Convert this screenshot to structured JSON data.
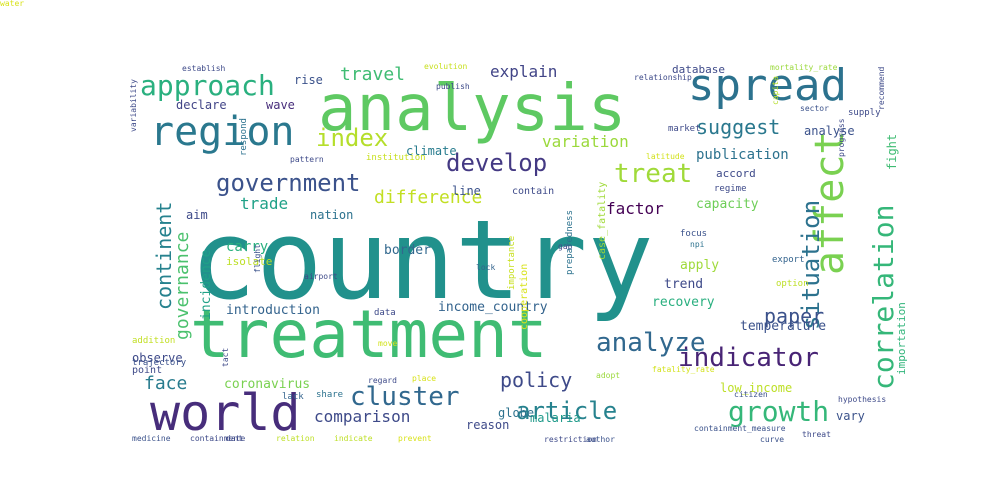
{
  "words": [
    {
      "text": "country",
      "color": "#21918c",
      "vertical": false
    },
    {
      "text": "treatment",
      "color": "#3fbc73",
      "vertical": false
    },
    {
      "text": "analysis",
      "color": "#5ec962",
      "vertical": false
    },
    {
      "text": "world",
      "color": "#472d7b",
      "vertical": false
    },
    {
      "text": "spread",
      "color": "#2c728e",
      "vertical": false
    },
    {
      "text": "region",
      "color": "#2a788e",
      "vertical": false
    },
    {
      "text": "affect",
      "color": "#7ad151",
      "vertical": true
    },
    {
      "text": "approach",
      "color": "#2ab07f",
      "vertical": false
    },
    {
      "text": "correlation",
      "color": "#35b779",
      "vertical": true
    },
    {
      "text": "analyze",
      "color": "#31688e",
      "vertical": false
    },
    {
      "text": "government",
      "color": "#3b528b",
      "vertical": false
    },
    {
      "text": "develop",
      "color": "#443983",
      "vertical": false
    },
    {
      "text": "indicator",
      "color": "#482475",
      "vertical": false
    },
    {
      "text": "cluster",
      "color": "#31688e",
      "vertical": false
    },
    {
      "text": "article",
      "color": "#26828e",
      "vertical": false
    },
    {
      "text": "growth",
      "color": "#35b779",
      "vertical": false
    },
    {
      "text": "treat",
      "color": "#a0da39",
      "vertical": false
    },
    {
      "text": "index",
      "color": "#b5de2b",
      "vertical": false
    },
    {
      "text": "situation",
      "color": "#2c728e",
      "vertical": true
    },
    {
      "text": "suggest",
      "color": "#2a788e",
      "vertical": false
    },
    {
      "text": "policy",
      "color": "#3e4a89",
      "vertical": false
    },
    {
      "text": "paper",
      "color": "#3b528b",
      "vertical": false
    },
    {
      "text": "continent",
      "color": "#26828e",
      "vertical": true
    },
    {
      "text": "governance",
      "color": "#4ac16d",
      "vertical": true
    },
    {
      "text": "travel",
      "color": "#3fbc73",
      "vertical": false
    },
    {
      "text": "explain",
      "color": "#414487",
      "vertical": false
    },
    {
      "text": "difference",
      "color": "#c2df23",
      "vertical": false
    },
    {
      "text": "factor",
      "color": "#440154",
      "vertical": false
    },
    {
      "text": "variation",
      "color": "#9bd93c",
      "vertical": false
    },
    {
      "text": "trade",
      "color": "#1fa187",
      "vertical": false
    },
    {
      "text": "face",
      "color": "#287c8e",
      "vertical": false
    },
    {
      "text": "comparison",
      "color": "#3e4a89",
      "vertical": false
    },
    {
      "text": "publication",
      "color": "#2c728e",
      "vertical": false
    },
    {
      "text": "analyse",
      "color": "#3b528b",
      "vertical": false
    },
    {
      "text": "accord",
      "color": "#3e4a89",
      "vertical": false
    },
    {
      "text": "capacity",
      "color": "#6ece58",
      "vertical": false
    },
    {
      "text": "carry",
      "color": "#2ab07f",
      "vertical": false
    },
    {
      "text": "isolate",
      "color": "#bddf26",
      "vertical": false
    },
    {
      "text": "incidence",
      "color": "#1fa187",
      "vertical": true
    },
    {
      "text": "border",
      "color": "#31688e",
      "vertical": false
    },
    {
      "text": "introduction",
      "color": "#33638d",
      "vertical": false
    },
    {
      "text": "income_country",
      "color": "#33638d",
      "vertical": false
    },
    {
      "text": "recovery",
      "color": "#29af7f",
      "vertical": false
    },
    {
      "text": "apply",
      "color": "#9fda3a",
      "vertical": false
    },
    {
      "text": "trend",
      "color": "#3e4a89",
      "vertical": false
    },
    {
      "text": "temperature",
      "color": "#3b528b",
      "vertical": false
    },
    {
      "text": "importation",
      "color": "#31b57b",
      "vertical": true
    },
    {
      "text": "coronavirus",
      "color": "#7ad151",
      "vertical": false
    },
    {
      "text": "low_income",
      "color": "#bddf26",
      "vertical": false
    },
    {
      "text": "malaria",
      "color": "#1f9a8a",
      "vertical": false
    },
    {
      "text": "globe",
      "color": "#2c728e",
      "vertical": false
    },
    {
      "text": "reason",
      "color": "#3e4a89",
      "vertical": false
    },
    {
      "text": "vary",
      "color": "#3b528b",
      "vertical": false
    },
    {
      "text": "observe",
      "color": "#3e4a89",
      "vertical": false
    },
    {
      "text": "declare",
      "color": "#414487",
      "vertical": false
    },
    {
      "text": "wave",
      "color": "#472d7b",
      "vertical": false
    },
    {
      "text": "rise",
      "color": "#3b528b",
      "vertical": false
    },
    {
      "text": "aim",
      "color": "#3e4a89",
      "vertical": false
    },
    {
      "text": "nation",
      "color": "#2c728e",
      "vertical": false
    },
    {
      "text": "climate",
      "color": "#287c8e",
      "vertical": false
    },
    {
      "text": "line",
      "color": "#3b528b",
      "vertical": false
    },
    {
      "text": "contain",
      "color": "#3e4a89",
      "vertical": false
    },
    {
      "text": "fight",
      "color": "#3fbc73",
      "vertical": true
    },
    {
      "text": "case_fatality",
      "color": "#a0da39",
      "vertical": true
    },
    {
      "text": "respond",
      "color": "#2c728e",
      "vertical": true
    },
    {
      "text": "pattern",
      "color": "#3e4a89",
      "vertical": false
    },
    {
      "text": "institution",
      "color": "#c8e020",
      "vertical": false
    },
    {
      "text": "latitude",
      "color": "#d2e21b",
      "vertical": false
    },
    {
      "text": "regime",
      "color": "#3e4a89",
      "vertical": false
    },
    {
      "text": "focus",
      "color": "#3b528b",
      "vertical": false
    },
    {
      "text": "npi",
      "color": "#2c728e",
      "vertical": false
    },
    {
      "text": "option",
      "color": "#bddf26",
      "vertical": false
    },
    {
      "text": "export",
      "color": "#33638d",
      "vertical": false
    },
    {
      "text": "gap",
      "color": "#3e4a89",
      "vertical": false
    },
    {
      "text": "lock",
      "color": "#33638d",
      "vertical": false
    },
    {
      "text": "cooperation",
      "color": "#d8e219",
      "vertical": true
    },
    {
      "text": "importance",
      "color": "#c8e020",
      "vertical": true
    },
    {
      "text": "preparedness",
      "color": "#2c728e",
      "vertical": true
    },
    {
      "text": "flight",
      "color": "#3b528b",
      "vertical": true
    },
    {
      "text": "airport",
      "color": "#3e4a89",
      "vertical": false
    },
    {
      "text": "data",
      "color": "#3e4a89",
      "vertical": false
    },
    {
      "text": "addition",
      "color": "#c2df23",
      "vertical": false
    },
    {
      "text": "point",
      "color": "#3e4a89",
      "vertical": false
    },
    {
      "text": "trajectory",
      "color": "#3b528b",
      "vertical": false
    },
    {
      "text": "lack",
      "color": "#33638d",
      "vertical": false
    },
    {
      "text": "share",
      "color": "#2c728e",
      "vertical": false
    },
    {
      "text": "regard",
      "color": "#3e4a89",
      "vertical": false
    },
    {
      "text": "place",
      "color": "#d8e219",
      "vertical": false
    },
    {
      "text": "fatality_rate",
      "color": "#d2e21b",
      "vertical": false
    },
    {
      "text": "adopt",
      "color": "#9bd93c",
      "vertical": false
    },
    {
      "text": "citizen",
      "color": "#3b528b",
      "vertical": false
    },
    {
      "text": "hypothesis",
      "color": "#3e4a89",
      "vertical": false
    },
    {
      "text": "medicine",
      "color": "#3b528b",
      "vertical": false
    },
    {
      "text": "containment",
      "color": "#3e4a89",
      "vertical": false
    },
    {
      "text": "date",
      "color": "#3e4a89",
      "vertical": false
    },
    {
      "text": "relation",
      "color": "#bddf26",
      "vertical": false
    },
    {
      "text": "indicate",
      "color": "#bddf26",
      "vertical": false
    },
    {
      "text": "prevent",
      "color": "#d8e219",
      "vertical": false
    },
    {
      "text": "restriction",
      "color": "#3e4a89",
      "vertical": false
    },
    {
      "text": "author",
      "color": "#3b528b",
      "vertical": false
    },
    {
      "text": "containment_measure",
      "color": "#3b528b",
      "vertical": false
    },
    {
      "text": "curve",
      "color": "#3b528b",
      "vertical": false
    },
    {
      "text": "threat",
      "color": "#3e4a89",
      "vertical": false
    },
    {
      "text": "establish",
      "color": "#3e4a89",
      "vertical": false
    },
    {
      "text": "evolution",
      "color": "#c8e020",
      "vertical": false
    },
    {
      "text": "publish",
      "color": "#3e4a89",
      "vertical": false
    },
    {
      "text": "relationship",
      "color": "#3e4a89",
      "vertical": false
    },
    {
      "text": "database",
      "color": "#3e4a89",
      "vertical": false
    },
    {
      "text": "mortality_rate",
      "color": "#9bd93c",
      "vertical": false
    },
    {
      "text": "market",
      "color": "#3e4a89",
      "vertical": false
    },
    {
      "text": "capita",
      "color": "#b5de2b",
      "vertical": true
    },
    {
      "text": "sector",
      "color": "#3b528b",
      "vertical": false
    },
    {
      "text": "supply",
      "color": "#3e4a89",
      "vertical": false
    },
    {
      "text": "recommend",
      "color": "#3e4a89",
      "vertical": true
    },
    {
      "text": "variability",
      "color": "#3e4a89",
      "vertical": true
    },
    {
      "text": "progress",
      "color": "#3e4a89",
      "vertical": true
    },
    {
      "text": "move",
      "color": "#d2e21b",
      "vertical": false
    },
    {
      "text": "tact",
      "color": "#3e4a89",
      "vertical": true
    },
    {
      "text": "water",
      "color": "#d8e219",
      "vertical": false
    }
  ]
}
